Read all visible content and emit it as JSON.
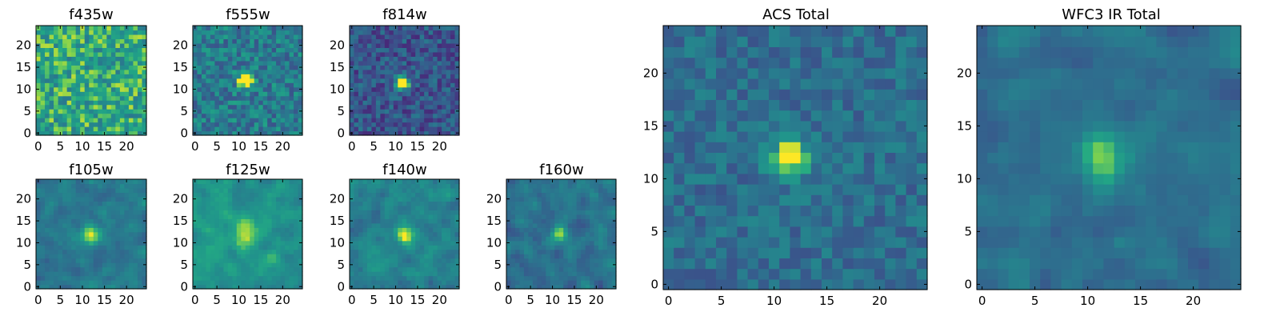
{
  "chart_data": [
    {
      "type": "heatmap",
      "title": "f435w",
      "grid": false,
      "colormap": "viridis",
      "xlim": [
        0,
        25
      ],
      "ylim": [
        0,
        25
      ],
      "xticks": [
        "0",
        "5",
        "10",
        "15",
        "20"
      ],
      "yticks": [
        "0",
        "5",
        "10",
        "15",
        "20"
      ],
      "source": {
        "peak": 0.0,
        "sigma": 1.6,
        "cx": 12,
        "cy": 12
      },
      "background": {
        "base": 0.72,
        "noise": 0.22,
        "smooth": 0,
        "seed": 11
      },
      "value_range": [
        0,
        1
      ]
    },
    {
      "type": "heatmap",
      "title": "f555w",
      "grid": false,
      "colormap": "viridis",
      "xlim": [
        0,
        25
      ],
      "ylim": [
        0,
        25
      ],
      "xticks": [
        "0",
        "5",
        "10",
        "15",
        "20"
      ],
      "yticks": [
        "0",
        "5",
        "10",
        "15",
        "20"
      ],
      "source": {
        "peak": 0.75,
        "sigma": 1.2,
        "cx": 12,
        "cy": 12.5
      },
      "background": {
        "base": 0.52,
        "noise": 0.2,
        "smooth": 0,
        "seed": 23
      },
      "value_range": [
        0,
        1
      ]
    },
    {
      "type": "heatmap",
      "title": "f814w",
      "grid": false,
      "colormap": "viridis",
      "xlim": [
        0,
        25
      ],
      "ylim": [
        0,
        25
      ],
      "xticks": [
        "0",
        "5",
        "10",
        "15",
        "20"
      ],
      "yticks": [
        "0",
        "5",
        "10",
        "15",
        "20"
      ],
      "source": {
        "peak": 0.95,
        "sigma": 1.1,
        "cx": 12,
        "cy": 12
      },
      "background": {
        "base": 0.33,
        "noise": 0.18,
        "smooth": 0,
        "seed": 37
      },
      "value_range": [
        0,
        1
      ]
    },
    {
      "type": "heatmap",
      "title": "f105w",
      "grid": false,
      "colormap": "viridis",
      "xlim": [
        0,
        25
      ],
      "ylim": [
        0,
        25
      ],
      "xticks": [
        "0",
        "5",
        "10",
        "15",
        "20"
      ],
      "yticks": [
        "0",
        "5",
        "10",
        "15",
        "20"
      ],
      "source": {
        "peak": 0.42,
        "sigma": 1.8,
        "cx": 12.5,
        "cy": 12.5
      },
      "background": {
        "base": 0.5,
        "noise": 0.14,
        "smooth": 1,
        "seed": 41
      },
      "value_range": [
        0,
        1
      ]
    },
    {
      "type": "heatmap",
      "title": "f125w",
      "grid": false,
      "colormap": "viridis",
      "xlim": [
        0,
        25
      ],
      "ylim": [
        0,
        25
      ],
      "xticks": [
        "0",
        "5",
        "10",
        "15",
        "20"
      ],
      "yticks": [
        "0",
        "5",
        "10",
        "15",
        "20"
      ],
      "source": {
        "peak": 0.3,
        "sigma": 2.0,
        "cx": 12,
        "cy": 12.5
      },
      "background": {
        "base": 0.65,
        "noise": 0.13,
        "smooth": 1,
        "seed": 53
      },
      "value_range": [
        0,
        1
      ]
    },
    {
      "type": "heatmap",
      "title": "f140w",
      "grid": false,
      "colormap": "viridis",
      "xlim": [
        0,
        25
      ],
      "ylim": [
        0,
        25
      ],
      "xticks": [
        "0",
        "5",
        "10",
        "15",
        "20"
      ],
      "yticks": [
        "0",
        "5",
        "10",
        "15",
        "20"
      ],
      "source": {
        "peak": 0.4,
        "sigma": 1.5,
        "cx": 12.5,
        "cy": 12.5
      },
      "background": {
        "base": 0.56,
        "noise": 0.15,
        "smooth": 1,
        "seed": 67
      },
      "value_range": [
        0,
        1
      ]
    },
    {
      "type": "heatmap",
      "title": "f160w",
      "grid": false,
      "colormap": "viridis",
      "xlim": [
        0,
        25
      ],
      "ylim": [
        0,
        25
      ],
      "xticks": [
        "0",
        "5",
        "10",
        "15",
        "20"
      ],
      "yticks": [
        "0",
        "5",
        "10",
        "15",
        "20"
      ],
      "source": {
        "peak": 0.45,
        "sigma": 1.3,
        "cx": 12,
        "cy": 12.5
      },
      "background": {
        "base": 0.48,
        "noise": 0.15,
        "smooth": 1,
        "seed": 79
      },
      "value_range": [
        0,
        1
      ]
    },
    {
      "type": "heatmap",
      "title": "ACS Total",
      "grid": false,
      "colormap": "viridis",
      "xlim": [
        0,
        25
      ],
      "ylim": [
        0,
        25
      ],
      "xticks": [
        "0",
        "5",
        "10",
        "15",
        "20"
      ],
      "yticks": [
        "0",
        "5",
        "10",
        "15",
        "20"
      ],
      "source": {
        "peak": 0.62,
        "sigma": 1.3,
        "cx": 12,
        "cy": 12.5
      },
      "background": {
        "base": 0.45,
        "noise": 0.13,
        "smooth": 0,
        "seed": 97
      },
      "value_range": [
        0,
        1
      ]
    },
    {
      "type": "heatmap",
      "title": "WFC3 IR Total",
      "grid": false,
      "colormap": "viridis",
      "xlim": [
        0,
        25
      ],
      "ylim": [
        0,
        25
      ],
      "xticks": [
        "0",
        "5",
        "10",
        "15",
        "20"
      ],
      "yticks": [
        "0",
        "5",
        "10",
        "15",
        "20"
      ],
      "source": {
        "peak": 0.42,
        "sigma": 1.6,
        "cx": 12,
        "cy": 12.5
      },
      "background": {
        "base": 0.46,
        "noise": 0.12,
        "smooth": 1,
        "seed": 113
      },
      "value_range": [
        0,
        1
      ]
    }
  ]
}
